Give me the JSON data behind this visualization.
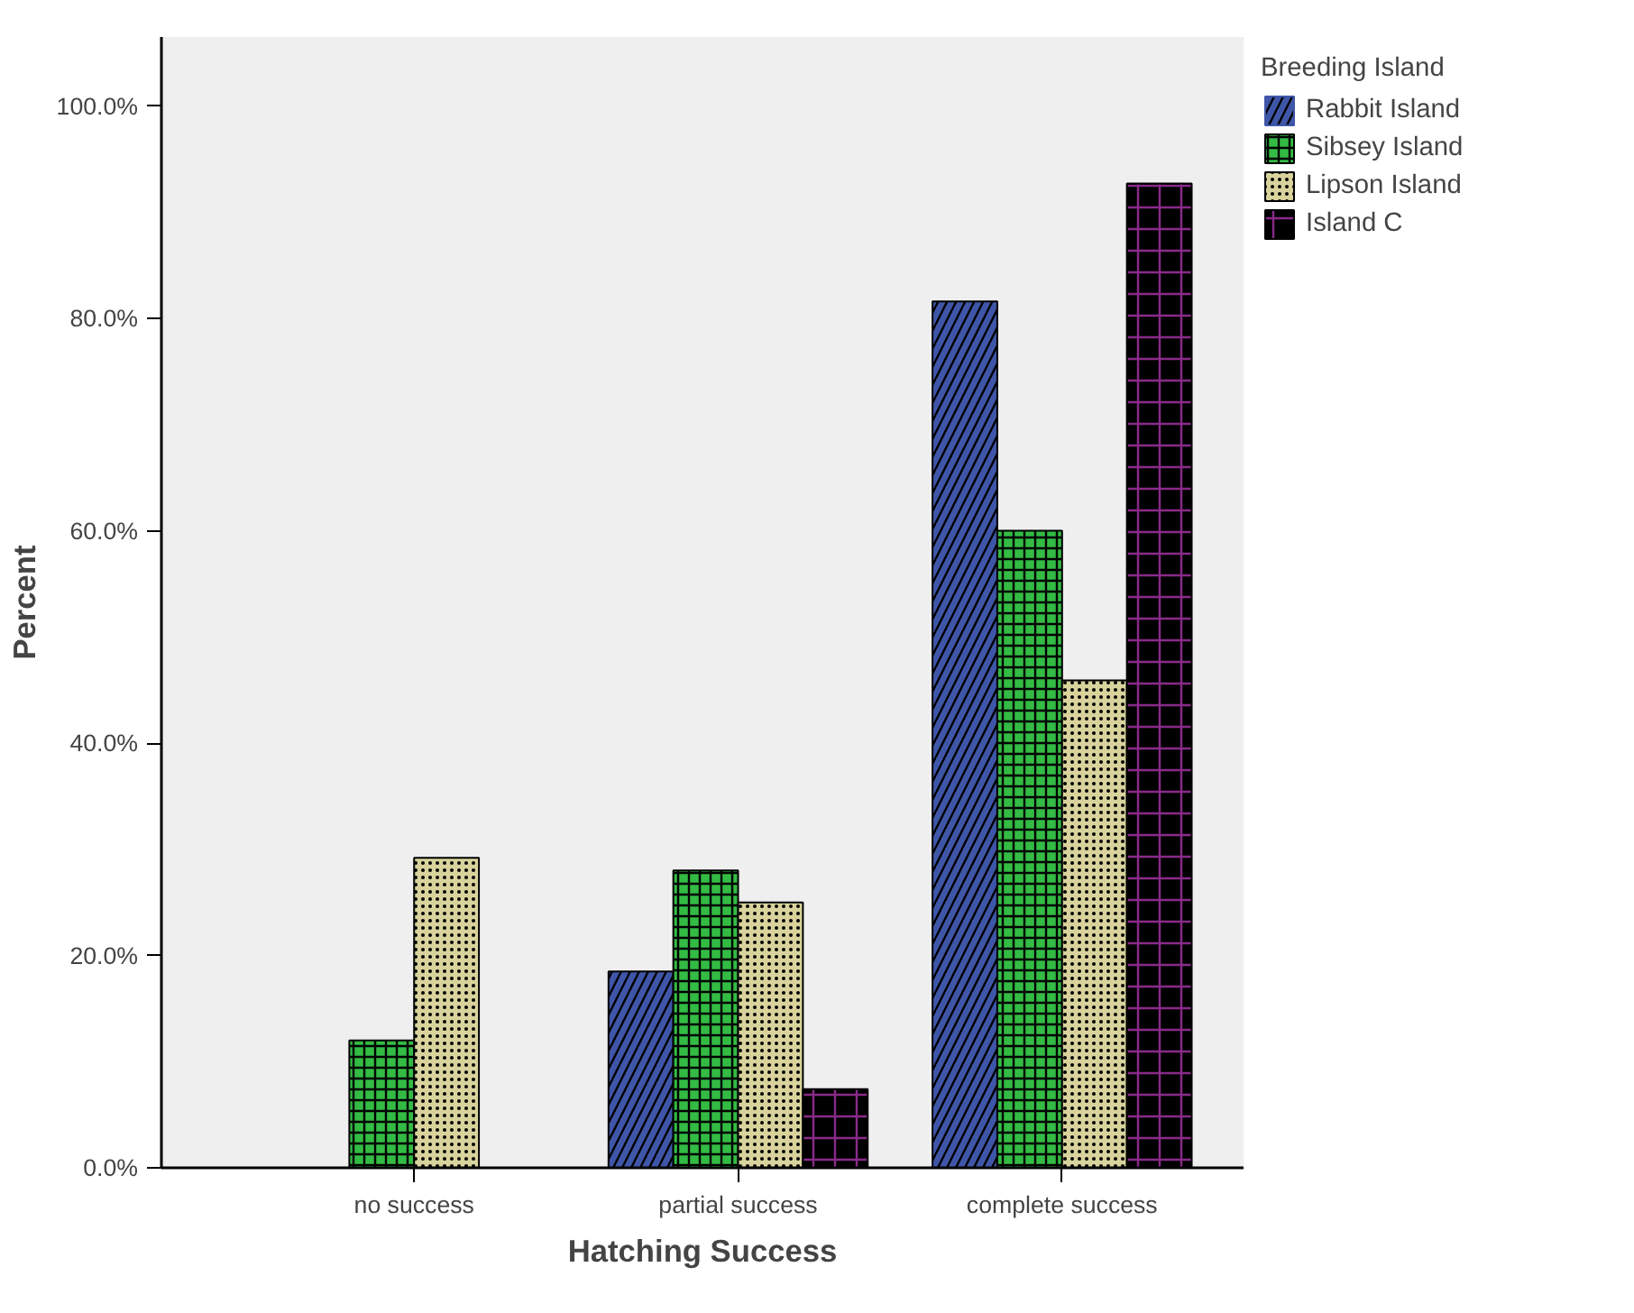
{
  "chart_data": {
    "type": "bar",
    "xlabel": "Hatching Success",
    "ylabel": "Percent",
    "legend_title": "Breeding Island",
    "categories": [
      "no success",
      "partial success",
      "complete success"
    ],
    "series": [
      {
        "name": "Rabbit Island",
        "color": "#3f56a8",
        "values": [
          0,
          18.5,
          81.6
        ]
      },
      {
        "name": "Sibsey Island",
        "color": "#33bb44",
        "values": [
          12.0,
          28.0,
          60.0
        ]
      },
      {
        "name": "Lipson Island",
        "color": "#d8d39c",
        "values": [
          29.2,
          25.0,
          45.9
        ]
      },
      {
        "name": "Island C",
        "color": "#000000",
        "values": [
          0,
          7.4,
          92.7
        ]
      }
    ],
    "ylim": [
      0,
      106.5
    ],
    "yticks": [
      {
        "value": 0,
        "label": "0.0%"
      },
      {
        "value": 20,
        "label": "20.0%"
      },
      {
        "value": 40,
        "label": "40.0%"
      },
      {
        "value": 60,
        "label": "60.0%"
      },
      {
        "value": 80,
        "label": "80.0%"
      },
      {
        "value": 100,
        "label": "100.0%"
      }
    ],
    "grid": false,
    "legend": "top right"
  }
}
